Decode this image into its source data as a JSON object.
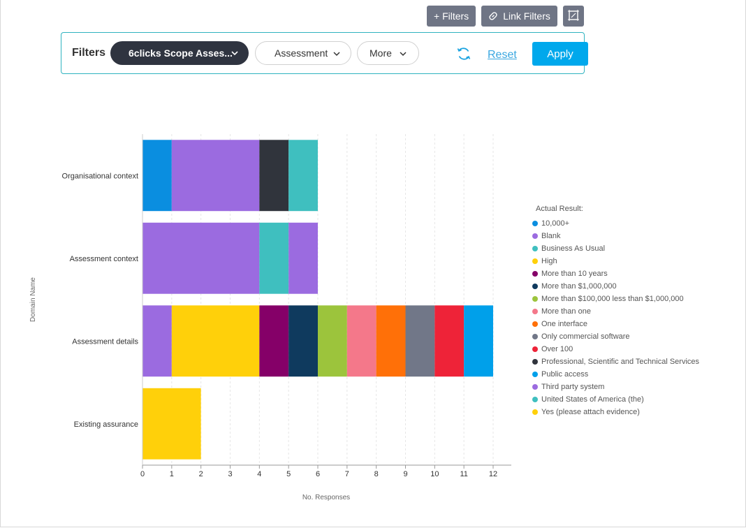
{
  "toolbar": {
    "add_filters_label": "+ Filters",
    "link_filters_label": "Link Filters",
    "link_icon": "link-icon",
    "expand_icon": "expand-icon"
  },
  "filters": {
    "label": "Filters",
    "pills": [
      {
        "label": "6clicks Scope Asses..."
      },
      {
        "label": "Assessment"
      },
      {
        "label": "More"
      }
    ],
    "reset_label": "Reset",
    "apply_label": "Apply",
    "refresh_icon": "refresh-icon"
  },
  "colors": {
    "accent": "#00a8ec",
    "filter_border": "#2fb3c0",
    "dark_pill": "#2f3440",
    "toolbar_button": "#6f7585"
  },
  "chart_data": {
    "type": "bar",
    "orientation": "horizontal",
    "stacked": true,
    "categories": [
      "Organisational context",
      "Assessment context",
      "Assessment details",
      "Existing assurance"
    ],
    "xlabel": "No. Responses",
    "ylabel": "Domain Name",
    "xlim": [
      0,
      12
    ],
    "xticks": [
      0,
      1,
      2,
      3,
      4,
      5,
      6,
      7,
      8,
      9,
      10,
      11,
      12
    ],
    "grid": true,
    "legend_title": "Actual Result:",
    "legend_position": "right",
    "series": [
      {
        "name": "10,000+",
        "color": "#0a8ee0",
        "values": [
          1,
          0,
          0,
          0
        ]
      },
      {
        "name": "Blank",
        "color": "#9b6be0",
        "values": [
          3,
          4,
          0,
          0
        ]
      },
      {
        "name": "Business As Usual",
        "color": "#3fbfbf",
        "values": [
          0,
          1,
          0,
          0
        ]
      },
      {
        "name": "High",
        "color": "#ffd00a",
        "values": [
          0,
          0,
          3,
          0
        ]
      },
      {
        "name": "More than 10 years",
        "color": "#850068",
        "values": [
          0,
          0,
          1,
          0
        ]
      },
      {
        "name": "More than $1,000,000",
        "color": "#0f3a5e",
        "values": [
          0,
          0,
          1,
          0
        ]
      },
      {
        "name": "More than $100,000 less than $1,000,000",
        "color": "#9cc43c",
        "values": [
          0,
          0,
          1,
          0
        ]
      },
      {
        "name": "More than one",
        "color": "#f4788a",
        "values": [
          0,
          0,
          1,
          0
        ]
      },
      {
        "name": "One interface",
        "color": "#ff7008",
        "values": [
          0,
          0,
          1,
          0
        ]
      },
      {
        "name": "Only commercial software",
        "color": "#717788",
        "values": [
          0,
          0,
          1,
          0
        ]
      },
      {
        "name": "Over 100",
        "color": "#ee2338",
        "values": [
          0,
          0,
          1,
          0
        ]
      },
      {
        "name": "Professional, Scientific and Technical Services",
        "color": "#30343c",
        "values": [
          1,
          0,
          0,
          0
        ]
      },
      {
        "name": "Public access",
        "color": "#00a0ea",
        "values": [
          0,
          0,
          1,
          0
        ]
      },
      {
        "name": "Third party system",
        "color": "#9b6be0",
        "values": [
          0,
          1,
          1,
          0
        ]
      },
      {
        "name": "United States of America (the)",
        "color": "#3fbfbf",
        "values": [
          1,
          0,
          0,
          0
        ]
      },
      {
        "name": "Yes (please attach evidence)",
        "color": "#ffd00a",
        "values": [
          0,
          0,
          0,
          2
        ]
      }
    ],
    "stack_order": [
      [
        "10,000+",
        "Blank",
        "Professional, Scientific and Technical Services",
        "United States of America (the)"
      ],
      [
        "Blank",
        "Business As Usual",
        "Third party system"
      ],
      [
        "Third party system",
        "High",
        "More than 10 years",
        "More than $1,000,000",
        "More than $100,000 less than $1,000,000",
        "More than one",
        "One interface",
        "Only commercial software",
        "Over 100",
        "Public access"
      ],
      [
        "Yes (please attach evidence)"
      ]
    ]
  }
}
